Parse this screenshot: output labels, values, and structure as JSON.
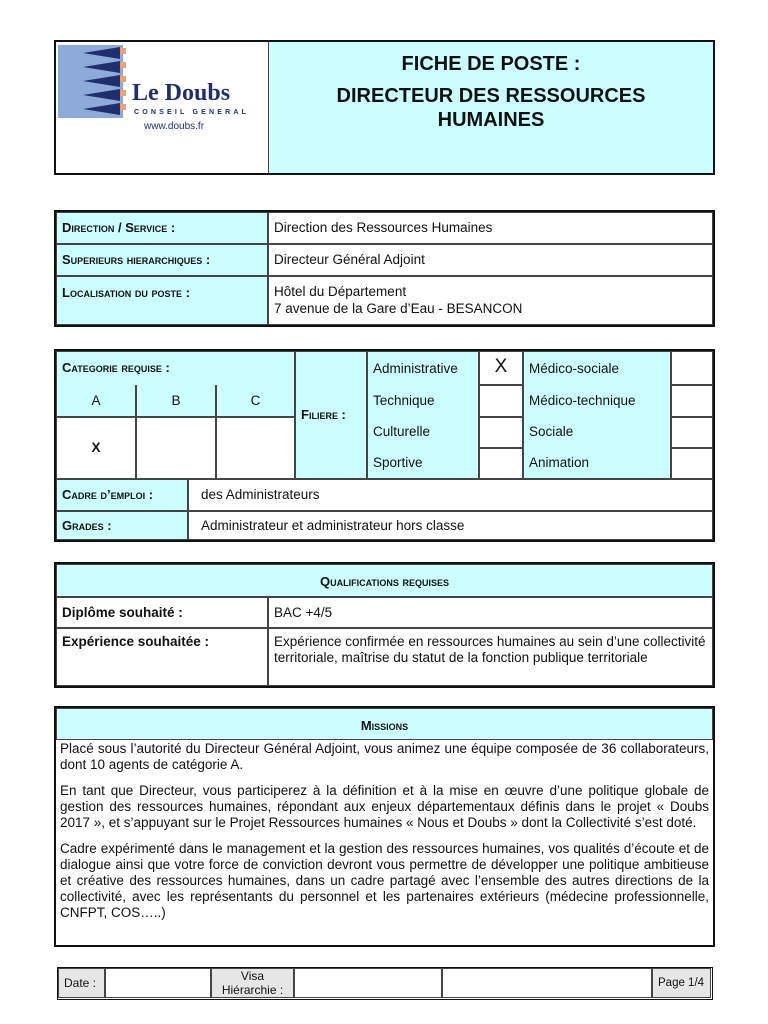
{
  "header": {
    "logo": {
      "name": "Le Doubs",
      "subtitle": "CONSEIL GENERAL",
      "url": "www.doubs.fr"
    },
    "title_line1": "FICHE DE POSTE :",
    "title_line2": "DIRECTEUR DES RESSOURCES HUMAINES"
  },
  "info": [
    {
      "label": "Direction / Service :",
      "value": "Direction des Ressources Humaines"
    },
    {
      "label": "Superieurs hierarchiques :",
      "value": "Directeur Général Adjoint"
    },
    {
      "label": "Localisation du poste :",
      "value": "Hôtel du Département",
      "value2": "7 avenue de la Gare d’Eau - BESANCON"
    }
  ],
  "categorie": {
    "label": "Categorie requise :",
    "cols": [
      "A",
      "B",
      "C"
    ],
    "marks": [
      "X",
      "",
      ""
    ]
  },
  "filiere": {
    "label": "Filiere :",
    "left": [
      {
        "name": "Administrative",
        "mark": "X"
      },
      {
        "name": "Technique",
        "mark": ""
      },
      {
        "name": "Culturelle",
        "mark": ""
      },
      {
        "name": "Sportive",
        "mark": ""
      }
    ],
    "right": [
      {
        "name": "Médico-sociale",
        "mark": ""
      },
      {
        "name": "Médico-technique",
        "mark": ""
      },
      {
        "name": "Sociale",
        "mark": ""
      },
      {
        "name": "Animation",
        "mark": ""
      }
    ]
  },
  "cadre": {
    "label": "Cadre d’emploi :",
    "value": "des Administrateurs"
  },
  "grades": {
    "label": "Grades :",
    "value": "Administrateur et administrateur hors classe"
  },
  "qualifications": {
    "title": "Qualifications requises",
    "diplome_label": "Diplôme souhaité :",
    "diplome_value": "BAC +4/5",
    "experience_label": "Expérience souhaitée :",
    "experience_value": "Expérience confirmée en ressources humaines au sein d’une collectivité territoriale, maîtrise du statut de la fonction publique territoriale"
  },
  "missions": {
    "title": "Missions",
    "paragraphs": [
      "Placé sous l’autorité du Directeur Général Adjoint, vous animez une équipe composée de 36 collaborateurs, dont 10 agents de catégorie A.",
      "En tant que Directeur, vous participerez à la définition et à la mise en œuvre d’une politique globale de gestion des ressources humaines, répondant aux enjeux départementaux définis dans le projet « Doubs 2017 », et s’appuyant sur le Projet Ressources humaines « Nous et Doubs » dont la Collectivité s’est doté.",
      "Cadre expérimenté dans le management et la gestion des ressources humaines, vos qualités d’écoute et de dialogue ainsi que votre force de conviction devront vous permettre de développer une politique ambitieuse et créative des ressources humaines, dans un cadre partagé avec l’ensemble des autres directions de la collectivité, avec les représentants du personnel et les partenaires extérieurs (médecine professionnelle, CNFPT, COS…..)"
    ]
  },
  "footer": {
    "date_label": "Date :",
    "visa_label_1": "Visa",
    "visa_label_2": "Hiérarchie :",
    "page": "Page 1/4"
  },
  "colors": {
    "cyan": "#ccffff",
    "grey": "#e6e6e6",
    "logo_blue": "#1f2f6e",
    "logo_light": "#8eaadb",
    "logo_orange": "#f0a070"
  }
}
